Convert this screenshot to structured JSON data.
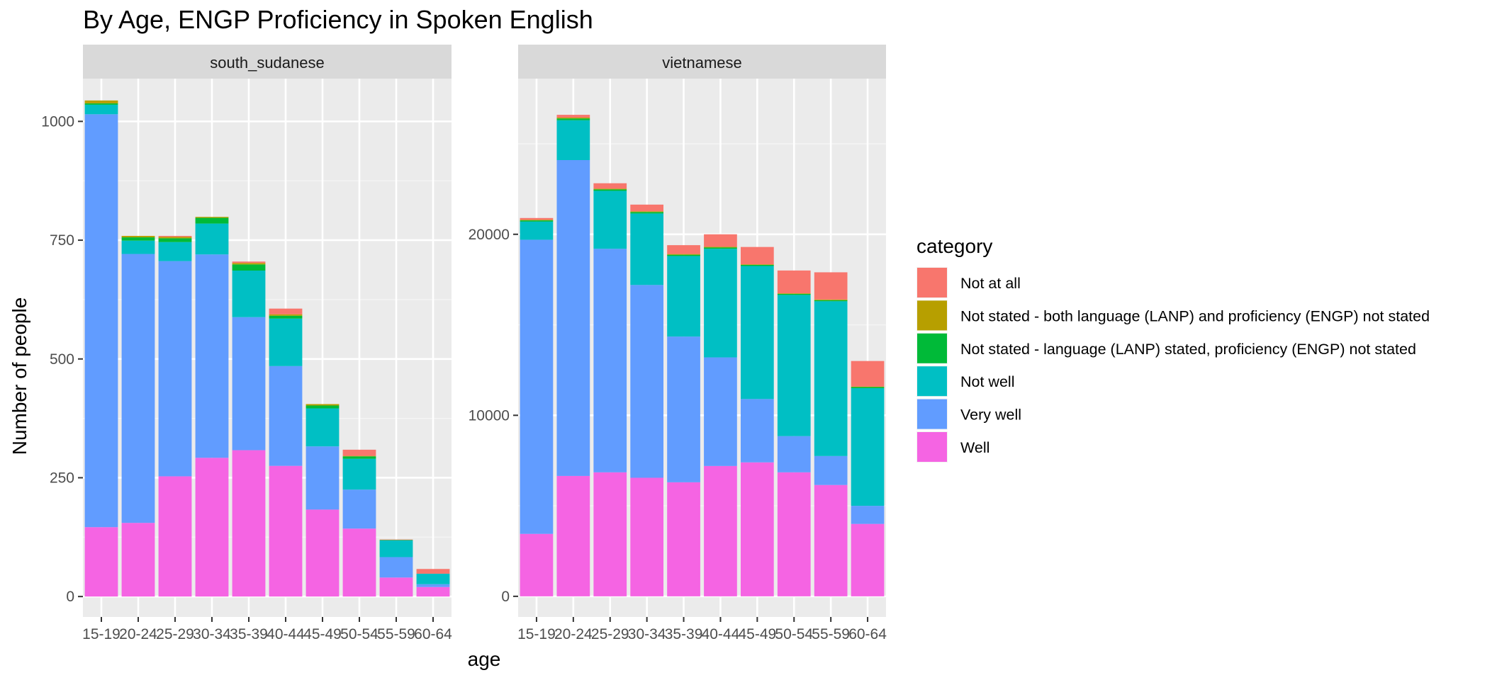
{
  "chart_data": {
    "type": "bar",
    "stacked": true,
    "title": "By Age,  ENGP Proficiency in Spoken English",
    "xlabel": "age",
    "ylabel": "Number of people",
    "legend_title": "category",
    "legend_position": "right",
    "grid": true,
    "categories": [
      "15-19",
      "20-24",
      "25-29",
      "30-34",
      "35-39",
      "40-44",
      "45-49",
      "50-54",
      "55-59",
      "60-64"
    ],
    "series_names": [
      "Not at all",
      "Not stated - both language (LANP) and proficiency (ENGP) not stated",
      "Not stated - language (LANP) stated, proficiency (ENGP) not stated",
      "Not well",
      "Very well",
      "Well"
    ],
    "series_colors": [
      "#F8766D",
      "#B79F00",
      "#00BA38",
      "#00BFC4",
      "#619CFF",
      "#F564E3"
    ],
    "panels": [
      {
        "name": "south_sudanese",
        "ylim": [
          -43,
          1090
        ],
        "yticks": [
          0,
          250,
          500,
          750,
          1000
        ],
        "ytick_labels": [
          "0",
          "250",
          "500",
          "750",
          "1000"
        ],
        "series": [
          {
            "name": "Well",
            "values": [
              146,
              155,
              253,
              292,
              308,
              275,
              183,
              143,
              40,
              20
            ]
          },
          {
            "name": "Very well",
            "values": [
              869,
              566,
              453,
              428,
              280,
              210,
              133,
              82,
              43,
              6
            ]
          },
          {
            "name": "Not well",
            "values": [
              20,
              28,
              40,
              65,
              98,
              100,
              80,
              65,
              35,
              22
            ]
          },
          {
            "name": "Not stated - language (LANP) stated, proficiency (ENGP) not stated",
            "values": [
              3,
              7,
              8,
              12,
              13,
              6,
              6,
              5,
              1,
              0
            ]
          },
          {
            "name": "Not stated - both language (LANP) and proficiency (ENGP) not stated",
            "values": [
              6,
              3,
              3,
              2,
              3,
              3,
              3,
              1,
              0,
              0
            ]
          },
          {
            "name": "Not at all",
            "values": [
              0,
              0,
              2,
              0,
              3,
              12,
              0,
              13,
              1,
              10
            ]
          }
        ]
      },
      {
        "name": "vietnamese",
        "ylim": [
          -1140,
          28600
        ],
        "yticks": [
          0,
          10000,
          20000
        ],
        "ytick_labels": [
          "0",
          "10000",
          "20000"
        ],
        "series": [
          {
            "name": "Well",
            "values": [
              3450,
              6650,
              6850,
              6550,
              6300,
              7200,
              7400,
              6850,
              6150,
              4000
            ]
          },
          {
            "name": "Very well",
            "values": [
              16250,
              17450,
              12350,
              10650,
              8050,
              6000,
              3500,
              2000,
              1600,
              1000
            ]
          },
          {
            "name": "Not well",
            "values": [
              1000,
              2200,
              3200,
              3950,
              4450,
              6000,
              7350,
              7800,
              8550,
              6500
            ]
          },
          {
            "name": "Not stated - language (LANP) stated, proficiency (ENGP) not stated",
            "values": [
              70,
              100,
              80,
              80,
              70,
              70,
              60,
              60,
              60,
              60
            ]
          },
          {
            "name": "Not stated - both language (LANP) and proficiency (ENGP) not stated",
            "values": [
              30,
              50,
              40,
              40,
              40,
              40,
              30,
              30,
              40,
              30
            ]
          },
          {
            "name": "Not at all",
            "values": [
              100,
              150,
              300,
              370,
              490,
              690,
              960,
              1260,
              1500,
              1410
            ]
          }
        ]
      }
    ]
  }
}
